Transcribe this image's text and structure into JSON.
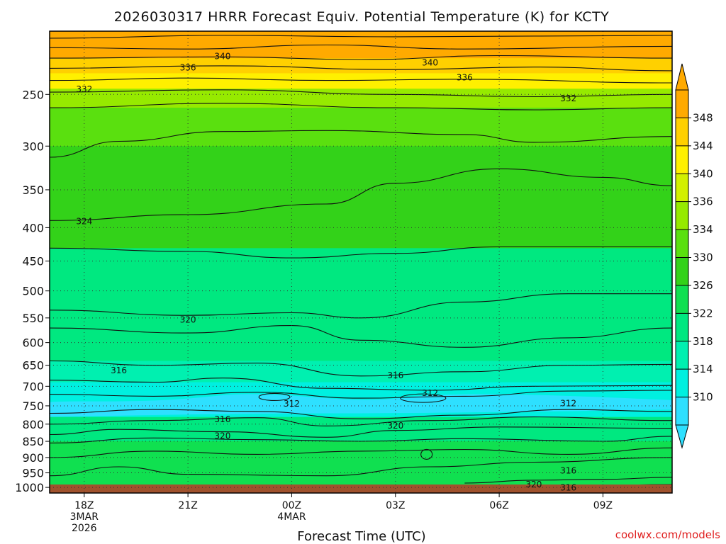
{
  "chart_data": {
    "type": "contour",
    "title": "2026030317 HRRR Forecast Equiv. Potential Temperature (K) for KCTY",
    "xlabel": "Forecast Time (UTC)",
    "y_axis": {
      "label": "",
      "scale": "log-pressure",
      "reversed": true,
      "range": [
        200,
        1020
      ],
      "ticks": [
        "250",
        "300",
        "350",
        "400",
        "450",
        "500",
        "550",
        "600",
        "650",
        "700",
        "750",
        "800",
        "850",
        "900",
        "950",
        "1000"
      ]
    },
    "x_axis": {
      "ticks": [
        {
          "hour": 1,
          "lines": [
            "18Z",
            "3MAR",
            "2026"
          ]
        },
        {
          "hour": 4,
          "lines": [
            "21Z"
          ]
        },
        {
          "hour": 7,
          "lines": [
            "00Z",
            "4MAR"
          ]
        },
        {
          "hour": 10,
          "lines": [
            "03Z"
          ]
        },
        {
          "hour": 13,
          "lines": [
            "06Z"
          ]
        },
        {
          "hour": 16,
          "lines": [
            "09Z"
          ]
        }
      ],
      "range_hours": [
        0,
        18
      ]
    },
    "grid": "dotted",
    "colorbar": {
      "ticks": [
        "310",
        "314",
        "318",
        "322",
        "326",
        "330",
        "334",
        "336",
        "340",
        "344",
        "348"
      ],
      "colors": [
        "#2ee0ff",
        "#00f0e0",
        "#00f0b0",
        "#00e880",
        "#10e050",
        "#33d219",
        "#5ae00f",
        "#96ea00",
        "#d2f000",
        "#fff000",
        "#ffd000",
        "#ffaa00"
      ],
      "extend": "both"
    },
    "contour_interval_k": 2,
    "contour_labels": [
      {
        "value": "340",
        "hour": 5.0,
        "p": 218
      },
      {
        "value": "336",
        "hour": 4.0,
        "p": 227
      },
      {
        "value": "332",
        "hour": 1.0,
        "p": 245
      },
      {
        "value": "340",
        "hour": 11.0,
        "p": 223
      },
      {
        "value": "336",
        "hour": 12.0,
        "p": 235
      },
      {
        "value": "332",
        "hour": 15.0,
        "p": 253
      },
      {
        "value": "324",
        "hour": 1.0,
        "p": 390
      },
      {
        "value": "320",
        "hour": 4.0,
        "p": 552
      },
      {
        "value": "316",
        "hour": 2.0,
        "p": 660
      },
      {
        "value": "316",
        "hour": 10.0,
        "p": 672
      },
      {
        "value": "312",
        "hour": 11.0,
        "p": 715
      },
      {
        "value": "312",
        "hour": 7.0,
        "p": 743
      },
      {
        "value": "312",
        "hour": 15.0,
        "p": 742
      },
      {
        "value": "316",
        "hour": 5.0,
        "p": 785
      },
      {
        "value": "320",
        "hour": 5.0,
        "p": 832
      },
      {
        "value": "320",
        "hour": 10.0,
        "p": 802
      },
      {
        "value": "316",
        "hour": 15.0,
        "p": 940
      },
      {
        "value": "320",
        "hour": 14.0,
        "p": 987
      },
      {
        "value": "316",
        "hour": 15.0,
        "p": 998
      }
    ]
  },
  "credit": "coolwx.com/models"
}
